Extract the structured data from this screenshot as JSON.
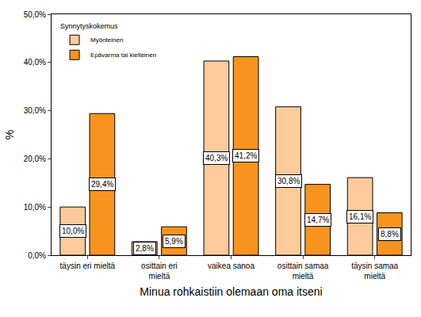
{
  "chart_data": {
    "type": "bar",
    "x_label": "Minua rohkaistiin olemaan oma itseni",
    "y_label": "%",
    "legend_title": "Synnytyskokemus",
    "legend": "upper left",
    "categories": [
      "täysin eri mieltä",
      "osittain eri mieltä",
      "vaikea sanoa",
      "osittain samaa mieltä",
      "täysin samaa mieltä"
    ],
    "series": [
      {
        "name": "Myönteinen",
        "color": "#FDCB9B",
        "values": [
          10.0,
          2.8,
          40.3,
          30.8,
          16.1
        ],
        "value_labels": [
          "10,0%",
          "2,8%",
          "40,3%",
          "30,8%",
          "16,1%"
        ]
      },
      {
        "name": "Epävarma tai kielteinen",
        "color": "#F7941D",
        "values": [
          29.4,
          5.9,
          41.2,
          14.7,
          8.8
        ],
        "value_labels": [
          "29,4%",
          "5,9%",
          "41,2%",
          "14,7%",
          "8,8%"
        ]
      }
    ],
    "ylim": [
      0,
      50
    ],
    "yticks": [
      {
        "value": 0,
        "label": "0,0%"
      },
      {
        "value": 10,
        "label": "10,0%"
      },
      {
        "value": 20,
        "label": "20,0%"
      },
      {
        "value": 30,
        "label": "30,0%"
      },
      {
        "value": 40,
        "label": "40,0%"
      },
      {
        "value": 50,
        "label": "50,0%"
      }
    ],
    "grid": false,
    "data_labels": true
  }
}
